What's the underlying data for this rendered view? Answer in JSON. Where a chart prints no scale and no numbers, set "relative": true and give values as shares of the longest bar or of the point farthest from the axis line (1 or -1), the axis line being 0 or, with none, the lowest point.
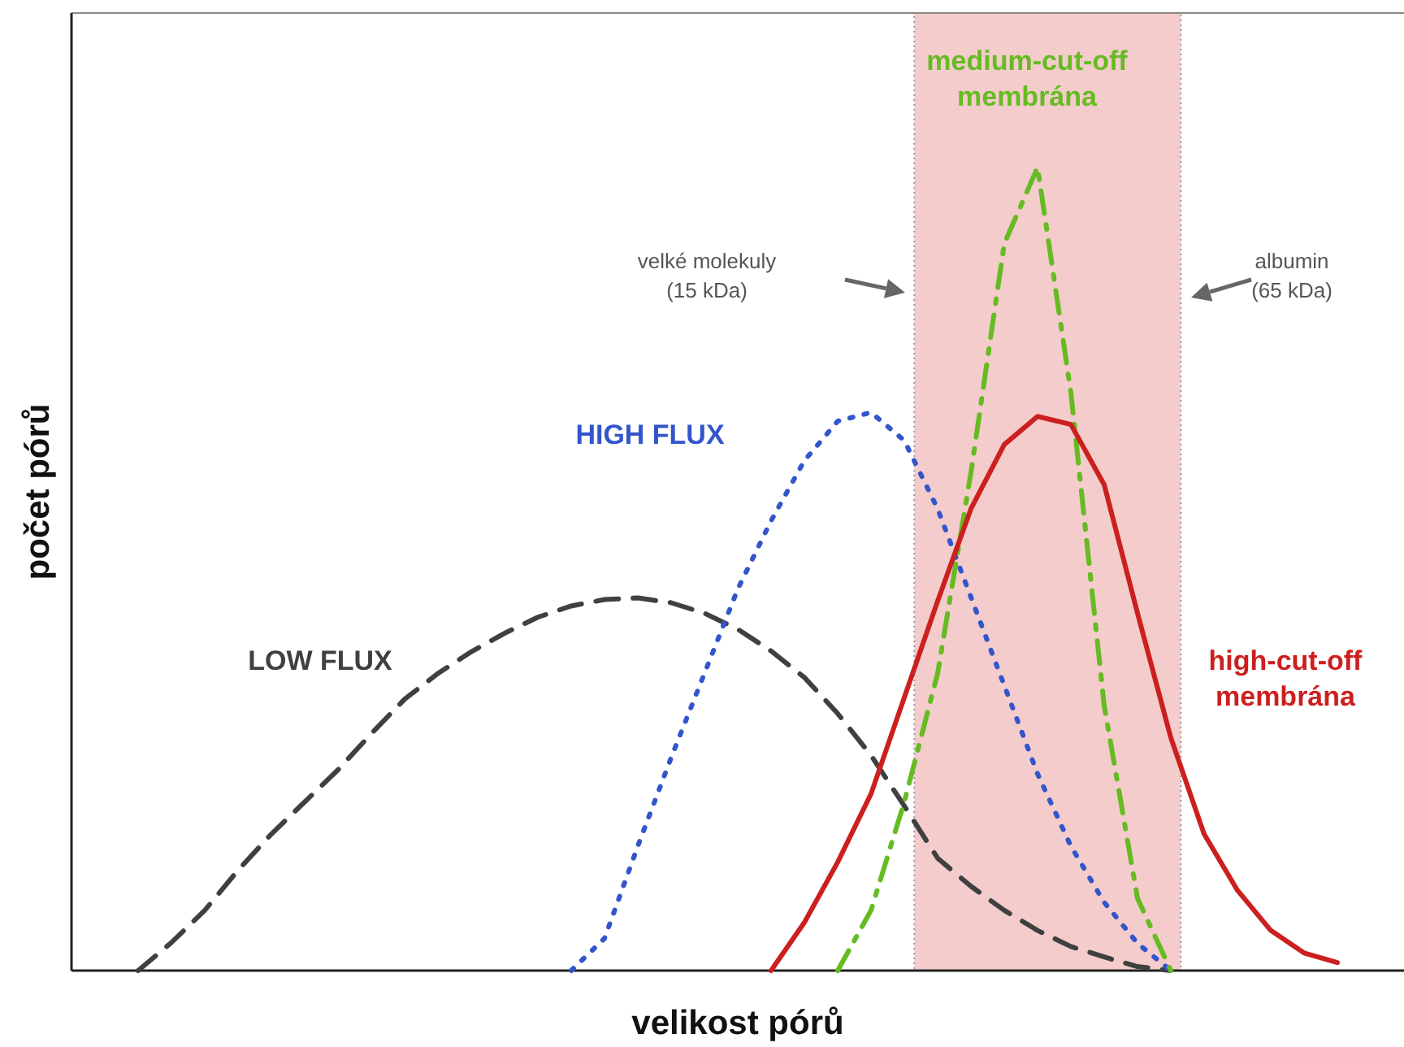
{
  "chart_data": {
    "type": "line",
    "relative": true,
    "xlabel": "velikost pórů",
    "ylabel": "počet pórů",
    "tick_labels": false,
    "categories": [
      null,
      null,
      null,
      null,
      null,
      null,
      null,
      null,
      null,
      null,
      null,
      null,
      null,
      null,
      null,
      null,
      null,
      null,
      null,
      null,
      null,
      null,
      null,
      null,
      null,
      null,
      null,
      null,
      null,
      null,
      null,
      null,
      null,
      null,
      null,
      null,
      null,
      null,
      null,
      null,
      null
    ],
    "annotations": [
      "velké molekuly (15 kDa)",
      "albumin (65 kDa)"
    ],
    "series": [
      {
        "name": "LOW FLUX",
        "color": "#404040",
        "line_style": "dashed",
        "values": [
          null,
          null,
          0,
          0.035,
          0.075,
          0.125,
          0.17,
          0.21,
          0.25,
          0.295,
          0.338,
          0.37,
          0.397,
          0.42,
          0.44,
          0.454,
          0.462,
          0.464,
          0.458,
          0.445,
          0.425,
          0.398,
          0.365,
          0.32,
          0.268,
          0.205,
          0.14,
          0.105,
          0.075,
          0.05,
          0.03,
          0.017,
          0.005,
          0,
          null,
          null,
          null,
          null,
          null,
          null,
          null
        ]
      },
      {
        "name": "HIGH FLUX",
        "color": "#3355cc",
        "line_style": "dotted",
        "values": [
          null,
          null,
          null,
          null,
          null,
          null,
          null,
          null,
          null,
          null,
          null,
          null,
          null,
          null,
          null,
          0,
          0.04,
          0.155,
          0.265,
          0.37,
          0.475,
          0.56,
          0.635,
          0.684,
          0.695,
          0.66,
          0.575,
          0.465,
          0.355,
          0.245,
          0.155,
          0.085,
          0.034,
          0,
          null,
          null,
          null,
          null,
          null,
          null,
          null
        ]
      },
      {
        "name": "medium-cut-off membrána",
        "color": "#66bb22",
        "line_style": "dashdot",
        "values": [
          null,
          null,
          null,
          null,
          null,
          null,
          null,
          null,
          null,
          null,
          null,
          null,
          null,
          null,
          null,
          null,
          null,
          null,
          null,
          null,
          null,
          null,
          null,
          0,
          0.075,
          0.21,
          0.37,
          0.62,
          0.905,
          1,
          0.72,
          0.33,
          0.09,
          0,
          null,
          null,
          null,
          null,
          null,
          null,
          null
        ]
      },
      {
        "name": "high-cut-off membrána",
        "color": "#cc1f1f",
        "line_style": "solid",
        "values": [
          null,
          null,
          null,
          null,
          null,
          null,
          null,
          null,
          null,
          null,
          null,
          null,
          null,
          null,
          null,
          null,
          null,
          null,
          null,
          null,
          null,
          0,
          0.06,
          0.135,
          0.22,
          0.34,
          0.46,
          0.575,
          0.655,
          0.69,
          0.68,
          0.605,
          0.445,
          0.29,
          0.17,
          0.1,
          0.05,
          0.022,
          0.01,
          null,
          null
        ]
      }
    ]
  }
}
